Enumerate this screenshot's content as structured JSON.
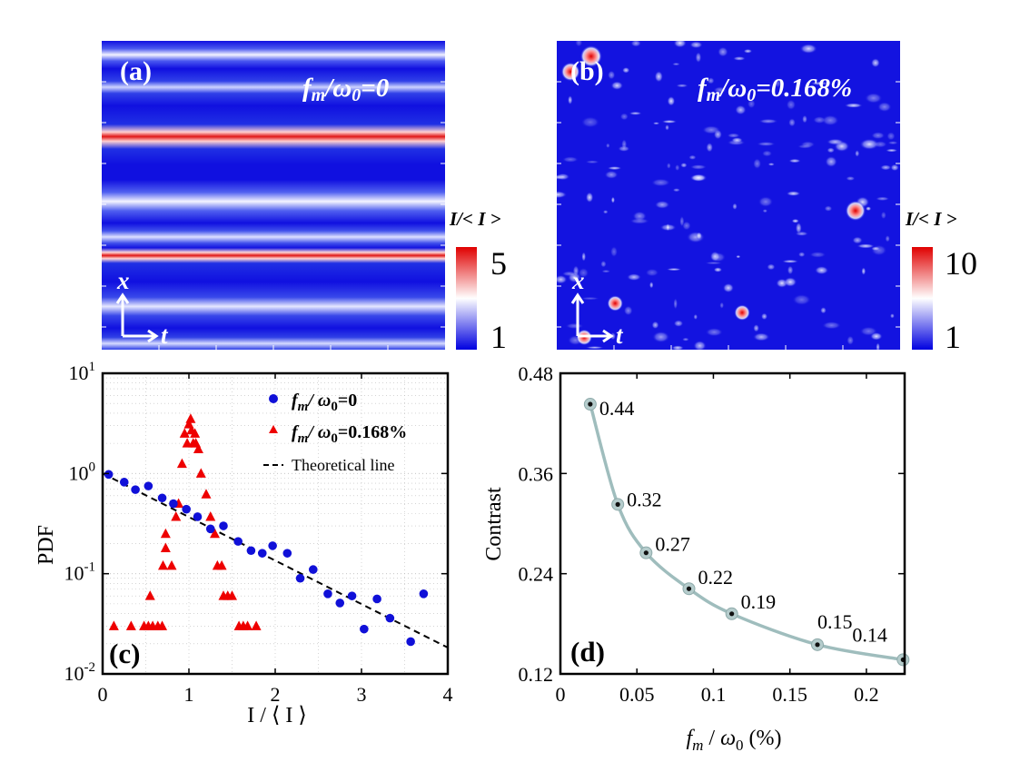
{
  "panel_a": {
    "label": "(a)",
    "annotation": "f_m/ω_0=0",
    "colorbar": {
      "title": "I/< I >",
      "max_label": "5",
      "min_label": "1",
      "min": 1,
      "max": 5
    },
    "axes": {
      "vertical": "x",
      "horizontal": "t"
    },
    "bright_stripes_relative_position": [
      0.32,
      0.69
    ]
  },
  "panel_b": {
    "label": "(b)",
    "annotation": "f_m/ω_0=0.168%",
    "colorbar": {
      "title": "I/< I >",
      "max_label": "10",
      "min_label": "1",
      "min": 1,
      "max": 10
    },
    "axes": {
      "vertical": "x",
      "horizontal": "t"
    },
    "hot_spots": [
      {
        "t": 0.1,
        "x": 0.05,
        "level": 10
      },
      {
        "t": 0.04,
        "x": 0.1,
        "level": 8
      },
      {
        "t": 0.08,
        "x": 0.96,
        "level": 6
      },
      {
        "t": 0.17,
        "x": 0.85,
        "level": 6
      },
      {
        "t": 0.54,
        "x": 0.88,
        "level": 6
      },
      {
        "t": 0.87,
        "x": 0.55,
        "level": 9
      }
    ]
  },
  "chart_data": [
    {
      "type": "scatter",
      "panel_label": "(c)",
      "xlabel": "I / ⟨ I ⟩",
      "ylabel": "PDF",
      "xlim": [
        0,
        4
      ],
      "ylim": [
        0.01,
        10
      ],
      "yscale": "log",
      "x_ticks": [
        "0",
        "1",
        "2",
        "3",
        "4"
      ],
      "y_ticks": [
        {
          "base": "10",
          "exp": "1",
          "value": 10
        },
        {
          "base": "10",
          "exp": "0",
          "value": 1
        },
        {
          "base": "10",
          "exp": "-1",
          "value": 0.1
        },
        {
          "base": "10",
          "exp": "-2",
          "value": 0.01
        }
      ],
      "legend_position": "top-right",
      "series": [
        {
          "name": "f_m/ ω_0=0",
          "legend_main": "f",
          "legend_sub1": "m",
          "legend_mid": "/ ω",
          "legend_sub2": "0",
          "legend_tail": "=0",
          "color": "#1010d8",
          "marker": "circle",
          "x": [
            0.07,
            0.25,
            0.38,
            0.53,
            0.69,
            0.82,
            0.97,
            1.1,
            1.25,
            1.4,
            1.57,
            1.72,
            1.85,
            1.97,
            2.14,
            2.29,
            2.44,
            2.61,
            2.75,
            2.89,
            3.03,
            3.18,
            3.33,
            3.57,
            3.72
          ],
          "y": [
            0.98,
            0.82,
            0.69,
            0.75,
            0.57,
            0.5,
            0.44,
            0.37,
            0.28,
            0.3,
            0.21,
            0.17,
            0.16,
            0.19,
            0.16,
            0.09,
            0.11,
            0.063,
            0.051,
            0.06,
            0.028,
            0.056,
            0.036,
            0.021,
            0.063
          ]
        },
        {
          "name": "f_m/ ω_0=0.168%",
          "legend_main": "f",
          "legend_sub1": "m",
          "legend_mid": "/ ω",
          "legend_sub2": "0",
          "legend_tail": "=0.168%",
          "color": "#ee0000",
          "marker": "triangle",
          "x": [
            0.13,
            0.33,
            0.48,
            0.53,
            0.58,
            0.64,
            0.69,
            0.55,
            0.7,
            0.73,
            0.73,
            0.8,
            0.85,
            0.88,
            0.92,
            0.95,
            0.98,
            1.0,
            1.02,
            1.03,
            1.05,
            1.07,
            1.08,
            1.11,
            1.14,
            1.2,
            1.25,
            1.3,
            1.33,
            1.38,
            1.4,
            1.45,
            1.5,
            1.58,
            1.63,
            1.68,
            1.78
          ],
          "y": [
            0.03,
            0.03,
            0.03,
            0.03,
            0.03,
            0.03,
            0.03,
            0.06,
            0.12,
            0.18,
            0.25,
            0.12,
            0.37,
            0.5,
            1.25,
            2.5,
            2.0,
            3.1,
            3.5,
            2.7,
            2.0,
            2.5,
            2.0,
            1.75,
            1.0,
            0.62,
            0.37,
            0.25,
            0.12,
            0.12,
            0.06,
            0.06,
            0.06,
            0.03,
            0.03,
            0.03,
            0.03
          ]
        },
        {
          "name": "Theoretical line",
          "color": "#000000",
          "style": "dashed",
          "x": [
            0,
            4
          ],
          "y": [
            1.0,
            0.0183
          ]
        }
      ]
    },
    {
      "type": "line",
      "panel_label": "(d)",
      "xlabel": "f_m / ω_0 (%)",
      "ylabel": "Contrast",
      "xlim": [
        0,
        0.225
      ],
      "ylim": [
        0.12,
        0.48
      ],
      "x_ticks": [
        "0",
        "0.05",
        "0.1",
        "0.15",
        "0.2"
      ],
      "x_tick_values": [
        0,
        0.05,
        0.1,
        0.15,
        0.2
      ],
      "y_ticks": [
        "0.12",
        "0.24",
        "0.36",
        "0.48"
      ],
      "y_tick_values": [
        0.12,
        0.24,
        0.36,
        0.48
      ],
      "color": "#9fbdbd",
      "x": [
        0.0195,
        0.0375,
        0.056,
        0.084,
        0.112,
        0.168,
        0.224
      ],
      "y": [
        0.443,
        0.323,
        0.265,
        0.222,
        0.192,
        0.155,
        0.137
      ],
      "point_labels": [
        "0.44",
        "0.32",
        "0.27",
        "0.22",
        "0.19",
        "0.15",
        "0.14"
      ]
    }
  ]
}
